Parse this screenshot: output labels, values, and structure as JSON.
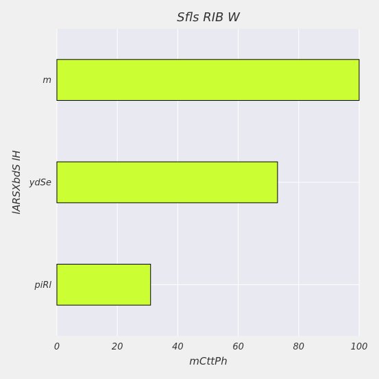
{
  "chart_data": {
    "type": "bar",
    "orientation": "horizontal",
    "title": "Sfls RIB W",
    "xlabel": "mCttPh",
    "ylabel": "lARSXbdS lH",
    "categories": [
      "piRl",
      "ydSe",
      "m"
    ],
    "values": [
      31,
      73,
      100
    ],
    "xlim": [
      0,
      100
    ],
    "xticks": [
      0,
      20,
      40,
      60,
      80,
      100
    ],
    "grid": true,
    "colors": {
      "bar_fill": "#ccff33",
      "bar_edge": "#000000",
      "plot_background": "#e9e9f1",
      "grid": "#ffffff",
      "figure_background": "#f0f0f0",
      "text": "#333333"
    }
  }
}
